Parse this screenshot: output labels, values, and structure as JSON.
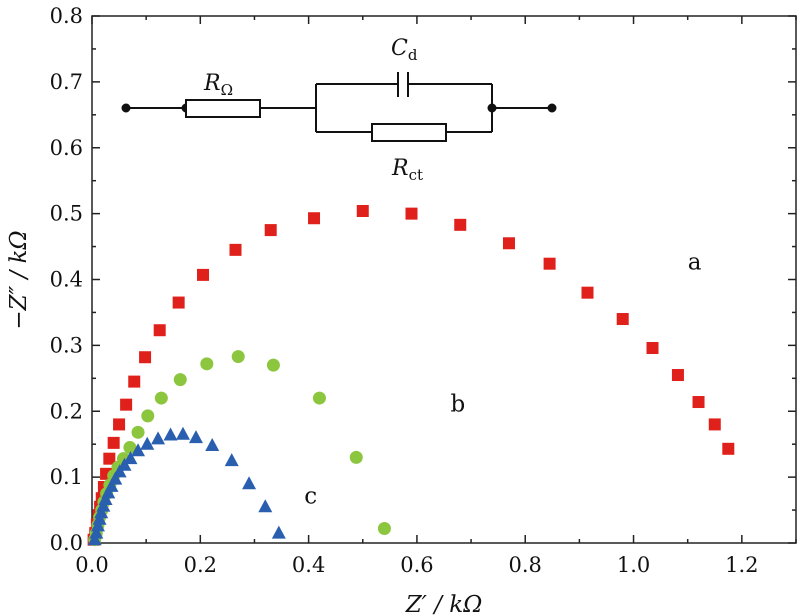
{
  "chart_data": {
    "type": "scatter",
    "title": "",
    "xlabel": "Z′ / kΩ",
    "ylabel": "−Z″ / kΩ",
    "xlim": [
      0,
      1.3
    ],
    "ylim": [
      0,
      0.8
    ],
    "x_ticks": [
      "0.0",
      "0.2",
      "0.4",
      "0.6",
      "0.8",
      "1.0",
      "1.2"
    ],
    "y_ticks": [
      "0.0",
      "0.1",
      "0.2",
      "0.3",
      "0.4",
      "0.5",
      "0.6",
      "0.7",
      "0.8"
    ],
    "grid": false,
    "series": [
      {
        "name": "a",
        "marker": "square",
        "color": "#e0201b",
        "points": [
          [
            0.003,
            0.005
          ],
          [
            0.006,
            0.015
          ],
          [
            0.009,
            0.028
          ],
          [
            0.012,
            0.042
          ],
          [
            0.015,
            0.055
          ],
          [
            0.018,
            0.068
          ],
          [
            0.022,
            0.085
          ],
          [
            0.026,
            0.105
          ],
          [
            0.032,
            0.128
          ],
          [
            0.04,
            0.152
          ],
          [
            0.05,
            0.18
          ],
          [
            0.063,
            0.21
          ],
          [
            0.078,
            0.245
          ],
          [
            0.098,
            0.282
          ],
          [
            0.125,
            0.323
          ],
          [
            0.16,
            0.365
          ],
          [
            0.205,
            0.407
          ],
          [
            0.265,
            0.445
          ],
          [
            0.33,
            0.475
          ],
          [
            0.41,
            0.493
          ],
          [
            0.5,
            0.504
          ],
          [
            0.59,
            0.5
          ],
          [
            0.68,
            0.483
          ],
          [
            0.77,
            0.455
          ],
          [
            0.845,
            0.424
          ],
          [
            0.915,
            0.38
          ],
          [
            0.98,
            0.34
          ],
          [
            1.035,
            0.296
          ],
          [
            1.082,
            0.255
          ],
          [
            1.12,
            0.214
          ],
          [
            1.15,
            0.18
          ],
          [
            1.175,
            0.143
          ]
        ]
      },
      {
        "name": "b",
        "marker": "circle",
        "color": "#8cc63f",
        "points": [
          [
            0.005,
            0.005
          ],
          [
            0.008,
            0.015
          ],
          [
            0.011,
            0.027
          ],
          [
            0.014,
            0.039
          ],
          [
            0.018,
            0.05
          ],
          [
            0.022,
            0.062
          ],
          [
            0.027,
            0.075
          ],
          [
            0.033,
            0.088
          ],
          [
            0.04,
            0.102
          ],
          [
            0.048,
            0.115
          ],
          [
            0.058,
            0.128
          ],
          [
            0.07,
            0.145
          ],
          [
            0.085,
            0.168
          ],
          [
            0.103,
            0.193
          ],
          [
            0.128,
            0.22
          ],
          [
            0.163,
            0.248
          ],
          [
            0.212,
            0.272
          ],
          [
            0.27,
            0.283
          ],
          [
            0.335,
            0.27
          ],
          [
            0.42,
            0.22
          ],
          [
            0.488,
            0.13
          ],
          [
            0.54,
            0.022
          ]
        ]
      },
      {
        "name": "c",
        "marker": "triangle",
        "color": "#2a5fb0",
        "points": [
          [
            0.005,
            0.005
          ],
          [
            0.008,
            0.015
          ],
          [
            0.011,
            0.026
          ],
          [
            0.014,
            0.036
          ],
          [
            0.017,
            0.046
          ],
          [
            0.021,
            0.056
          ],
          [
            0.025,
            0.066
          ],
          [
            0.03,
            0.076
          ],
          [
            0.036,
            0.086
          ],
          [
            0.043,
            0.097
          ],
          [
            0.051,
            0.108
          ],
          [
            0.06,
            0.118
          ],
          [
            0.071,
            0.128
          ],
          [
            0.085,
            0.14
          ],
          [
            0.102,
            0.15
          ],
          [
            0.122,
            0.158
          ],
          [
            0.145,
            0.164
          ],
          [
            0.168,
            0.165
          ],
          [
            0.192,
            0.16
          ],
          [
            0.222,
            0.148
          ],
          [
            0.258,
            0.125
          ],
          [
            0.29,
            0.09
          ],
          [
            0.32,
            0.055
          ],
          [
            0.345,
            0.015
          ]
        ]
      }
    ],
    "annotations": [
      {
        "text": "a",
        "x": 1.1,
        "y": 0.415
      },
      {
        "text": "b",
        "x": 0.662,
        "y": 0.2
      },
      {
        "text": "c",
        "x": 0.392,
        "y": 0.06
      }
    ],
    "inset_circuit": {
      "r_omega_label": "R",
      "r_omega_sub": "Ω",
      "cd_label": "C",
      "cd_sub": "d",
      "rct_label": "R",
      "rct_sub": "ct"
    }
  }
}
